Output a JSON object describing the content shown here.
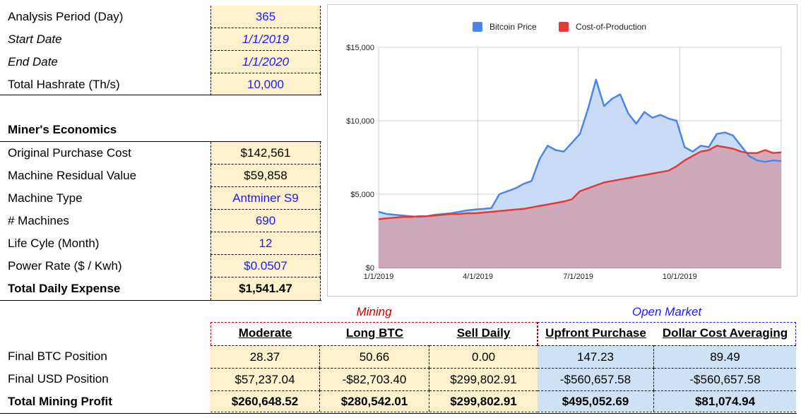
{
  "params": {
    "analysis_period": {
      "label": "Analysis Period (Day)",
      "value": "365"
    },
    "start_date": {
      "label": "Start Date",
      "value": "1/1/2019"
    },
    "end_date": {
      "label": "End Date",
      "value": "1/1/2020"
    },
    "hashrate": {
      "label": "Total Hashrate (Th/s)",
      "value": "10,000"
    }
  },
  "economics": {
    "title": "Miner's Economics",
    "purchase_cost": {
      "label": "Original Purchase Cost",
      "value": "$142,561"
    },
    "residual_value": {
      "label": "Machine Residual Value",
      "value": "$59,858"
    },
    "machine_type": {
      "label": "Machine Type",
      "value": "Antminer S9"
    },
    "machines": {
      "label": "# Machines",
      "value": "690"
    },
    "life_cycle": {
      "label": "Life Cyle (Month)",
      "value": "12"
    },
    "power_rate": {
      "label": "Power Rate ($ / Kwh)",
      "value": "$0.0507"
    },
    "daily_expense": {
      "label": "Total Daily Expense",
      "value": "$1,541.47"
    }
  },
  "results": {
    "group_mining": "Mining",
    "group_market": "Open Market",
    "columns": [
      "Moderate",
      "Long BTC",
      "Sell Daily",
      "Upfront Purchase",
      "Dollar Cost Averaging"
    ],
    "rows": [
      {
        "label": "Final BTC Position",
        "values": [
          "28.37",
          "50.66",
          "0.00",
          "147.23",
          "89.49"
        ]
      },
      {
        "label": "Final USD Position",
        "values": [
          "$57,237.04",
          "-$82,703.40",
          "$299,802.91",
          "-$560,657.58",
          "-$560,657.58"
        ]
      },
      {
        "label": "Total Mining Profit",
        "values": [
          "$260,648.52",
          "$280,542.01",
          "$299,802.91",
          "$495,052.69",
          "$81,074.94"
        ]
      }
    ]
  },
  "colors": {
    "bitcoin": "#4a86e8",
    "cost": "#e53935",
    "mining_border": "#cc0000",
    "market_border": "#0000ff"
  },
  "chart_data": {
    "type": "area",
    "title": "",
    "legend_position": "top",
    "series": [
      {
        "name": "Bitcoin Price",
        "color": "#4a86e8",
        "values": [
          3800,
          3650,
          3600,
          3550,
          3500,
          3450,
          3500,
          3600,
          3650,
          3700,
          3800,
          3900,
          3950,
          4000,
          4050,
          5000,
          5200,
          5400,
          5700,
          5900,
          7400,
          8300,
          8000,
          7900,
          8500,
          9100,
          10800,
          12800,
          11000,
          11500,
          11800,
          10500,
          9800,
          10600,
          10200,
          10400,
          10150,
          10000,
          8200,
          7900,
          8300,
          8200,
          9100,
          9200,
          9000,
          8300,
          7600,
          7300,
          7200,
          7300,
          7250
        ]
      },
      {
        "name": "Cost-of-Production",
        "color": "#e53935",
        "values": [
          3300,
          3350,
          3400,
          3450,
          3450,
          3500,
          3500,
          3550,
          3600,
          3650,
          3650,
          3700,
          3700,
          3750,
          3800,
          3850,
          3900,
          3950,
          4000,
          4100,
          4200,
          4300,
          4400,
          4500,
          4650,
          5200,
          5400,
          5600,
          5800,
          5900,
          6000,
          6100,
          6200,
          6300,
          6400,
          6500,
          6600,
          6900,
          7300,
          7600,
          7900,
          8000,
          8300,
          8200,
          8100,
          7900,
          7800,
          7800,
          8000,
          7800,
          7850
        ]
      }
    ],
    "x_ticks": [
      "1/1/2019",
      "4/1/2019",
      "7/1/2019",
      "10/1/2019"
    ],
    "y_ticks": [
      "$0",
      "$5,000",
      "$10,000",
      "$15,000"
    ],
    "ylim": [
      0,
      15000
    ],
    "grid": true
  }
}
